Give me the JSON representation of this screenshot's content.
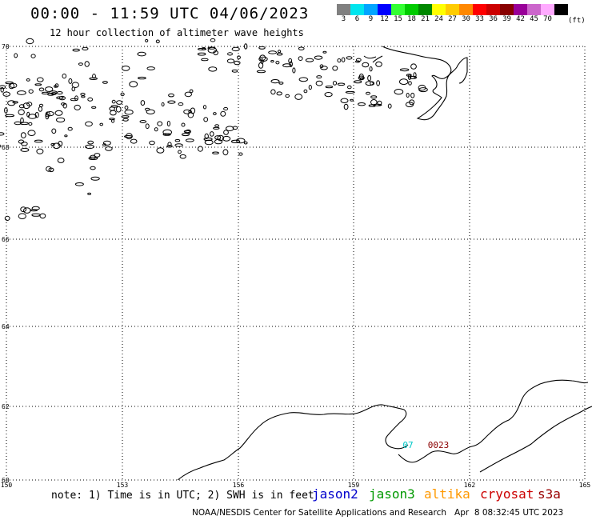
{
  "header": {
    "title": "00:00 - 11:59 UTC 04/06/2023",
    "subtitle": "12 hour collection of altimeter wave heights"
  },
  "legend": {
    "unit": "(ft)",
    "bins": [
      {
        "label": "3",
        "color": "#808080"
      },
      {
        "label": "6",
        "color": "#00e5ee"
      },
      {
        "label": "9",
        "color": "#00a5ff"
      },
      {
        "label": "12",
        "color": "#0000ff"
      },
      {
        "label": "15",
        "color": "#33ff33"
      },
      {
        "label": "18",
        "color": "#00cc00"
      },
      {
        "label": "21",
        "color": "#008800"
      },
      {
        "label": "24",
        "color": "#ffff00"
      },
      {
        "label": "27",
        "color": "#ffcc00"
      },
      {
        "label": "30",
        "color": "#ff8800"
      },
      {
        "label": "33",
        "color": "#ff0000"
      },
      {
        "label": "36",
        "color": "#cc0000"
      },
      {
        "label": "39",
        "color": "#880000"
      },
      {
        "label": "42",
        "color": "#990099"
      },
      {
        "label": "45",
        "color": "#cc66cc"
      },
      {
        "label": "70",
        "color": "#ffaaff"
      },
      {
        "label": "",
        "color": "#000000"
      }
    ]
  },
  "map": {
    "lon_labels": [
      "150",
      "153",
      "156",
      "159",
      "162",
      "165"
    ],
    "lat_labels": [
      "70",
      "68",
      "66",
      "64",
      "62",
      "60"
    ],
    "observations": [
      {
        "text": "07",
        "color": "#00c8c8"
      },
      {
        "text": "0023",
        "color": "#8b0000"
      }
    ]
  },
  "footer": {
    "note": "note: 1) Time is in UTC; 2) SWH is in feet",
    "satellites": [
      {
        "name": "jason2",
        "color": "#0000cc"
      },
      {
        "name": "jason3",
        "color": "#009900"
      },
      {
        "name": "altika",
        "color": "#ff9900"
      },
      {
        "name": "cryosat",
        "color": "#cc0000"
      },
      {
        "name": "s3a",
        "color": "#990000"
      }
    ],
    "credit": "NOAA/NESDIS Center for Satellite Applications and Research   Apr  8 08:32:45 UTC 2023"
  }
}
